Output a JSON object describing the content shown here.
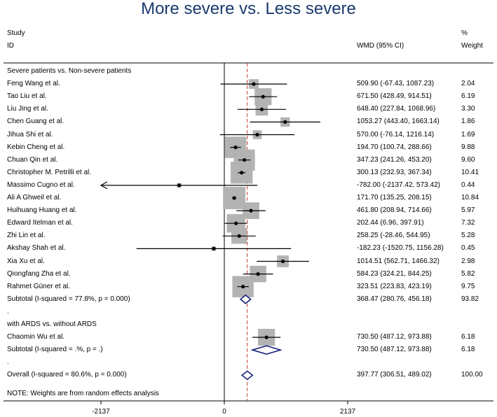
{
  "chart_data": {
    "type": "forest",
    "title": "More severe vs. Less severe",
    "header": {
      "study": "Study",
      "id": "ID",
      "effect": "WMD (95% CI)",
      "pct": "%",
      "weight": "Weight"
    },
    "x_ticks": [
      -2137,
      0,
      2137
    ],
    "x_tick_labels": [
      "-2137",
      "0",
      "2137"
    ],
    "xlim": [
      -2137,
      2137
    ],
    "overall_line": 397.77,
    "rows": [
      {
        "kind": "group",
        "label": "Severe patients vs. Non-severe patients"
      },
      {
        "kind": "study",
        "label": "Feng Wang et al.",
        "est": 509.9,
        "lo": -67.43,
        "hi": 1087.23,
        "ci": "509.90 (-67.43, 1087.23)",
        "weight": "2.04",
        "w": 2.04
      },
      {
        "kind": "study",
        "label": "Tao Liu et al.",
        "est": 671.5,
        "lo": 428.49,
        "hi": 914.51,
        "ci": "671.50 (428.49, 914.51)",
        "weight": "6.19",
        "w": 6.19
      },
      {
        "kind": "study",
        "label": "Liu Jing et al.",
        "est": 648.4,
        "lo": 227.84,
        "hi": 1068.96,
        "ci": "648.40 (227.84, 1068.96)",
        "weight": "3.30",
        "w": 3.3
      },
      {
        "kind": "study",
        "label": "Chen Guang et al.",
        "est": 1053.27,
        "lo": 443.4,
        "hi": 1663.14,
        "ci": "1053.27 (443.40, 1663.14)",
        "weight": "1.86",
        "w": 1.86
      },
      {
        "kind": "study",
        "label": "Jihua Shi et al.",
        "est": 570.0,
        "lo": -76.14,
        "hi": 1216.14,
        "ci": "570.00 (-76.14, 1216.14)",
        "weight": "1.69",
        "w": 1.69
      },
      {
        "kind": "study",
        "label": "Kebin Cheng et al.",
        "est": 194.7,
        "lo": 100.74,
        "hi": 288.66,
        "ci": "194.70 (100.74, 288.66)",
        "weight": "9.88",
        "w": 9.88
      },
      {
        "kind": "study",
        "label": "Chuan Qin et al.",
        "est": 347.23,
        "lo": 241.26,
        "hi": 453.2,
        "ci": "347.23 (241.26, 453.20)",
        "weight": "9.60",
        "w": 9.6
      },
      {
        "kind": "study",
        "label": "Christopher M. Petrilli et al.",
        "est": 300.13,
        "lo": 232.93,
        "hi": 367.34,
        "ci": "300.13 (232.93, 367.34)",
        "weight": "10.41",
        "w": 10.41
      },
      {
        "kind": "study",
        "label": "Massimo Cugno et al.",
        "est": -782.0,
        "lo": -2137.42,
        "hi": 573.42,
        "ci": "-782.00 (-2137.42, 573.42)",
        "weight": "0.44",
        "w": 0.44,
        "arrow_left": true
      },
      {
        "kind": "study",
        "label": "Ali A Ghweil et al.",
        "est": 171.7,
        "lo": 135.25,
        "hi": 208.15,
        "ci": "171.70 (135.25, 208.15)",
        "weight": "10.84",
        "w": 10.84
      },
      {
        "kind": "study",
        "label": "Huihuang Huang et al.",
        "est": 461.8,
        "lo": 208.94,
        "hi": 714.66,
        "ci": "461.80 (208.94, 714.66)",
        "weight": "5.97",
        "w": 5.97
      },
      {
        "kind": "study",
        "label": "Edward Itelman et al.",
        "est": 202.44,
        "lo": 6.96,
        "hi": 397.91,
        "ci": "202.44 (6.96, 397.91)",
        "weight": "7.32",
        "w": 7.32
      },
      {
        "kind": "study",
        "label": "Zhi Lin et al.",
        "est": 258.25,
        "lo": -28.46,
        "hi": 544.95,
        "ci": "258.25 (-28.46, 544.95)",
        "weight": "5.28",
        "w": 5.28
      },
      {
        "kind": "study",
        "label": "Akshay Shah et al.",
        "est": -182.23,
        "lo": -1520.75,
        "hi": 1156.28,
        "ci": "-182.23 (-1520.75, 1156.28)",
        "weight": "0.45",
        "w": 0.45
      },
      {
        "kind": "study",
        "label": "Xia Xu et al.",
        "est": 1014.51,
        "lo": 562.71,
        "hi": 1466.32,
        "ci": "1014.51 (562.71, 1466.32)",
        "weight": "2.98",
        "w": 2.98
      },
      {
        "kind": "study",
        "label": "Qiongfang Zha et al.",
        "est": 584.23,
        "lo": 324.21,
        "hi": 844.25,
        "ci": "584.23 (324.21, 844.25)",
        "weight": "5.82",
        "w": 5.82
      },
      {
        "kind": "study",
        "label": "Rahmet Güner et al.",
        "est": 323.51,
        "lo": 223.83,
        "hi": 423.19,
        "ci": "323.51 (223.83, 423.19)",
        "weight": "9.75",
        "w": 9.75
      },
      {
        "kind": "subtotal",
        "label": "Subtotal  (I-squared = 77.8%, p = 0.000)",
        "est": 368.47,
        "lo": 280.76,
        "hi": 456.18,
        "ci": "368.47 (280.76, 456.18)",
        "weight": "93.82"
      },
      {
        "kind": "dot",
        "label": "."
      },
      {
        "kind": "group",
        "label": "with ARDS vs. without ARDS"
      },
      {
        "kind": "study",
        "label": "Chaomin Wu et al.",
        "est": 730.5,
        "lo": 487.12,
        "hi": 973.88,
        "ci": "730.50 (487.12, 973.88)",
        "weight": "6.18",
        "w": 6.18
      },
      {
        "kind": "subtotal",
        "label": "Subtotal  (I-squared = .%, p = .)",
        "est": 730.5,
        "lo": 487.12,
        "hi": 973.88,
        "ci": "730.50 (487.12, 973.88)",
        "weight": "6.18"
      },
      {
        "kind": "dot",
        "label": "."
      },
      {
        "kind": "subtotal",
        "label": "Overall  (I-squared = 80.6%, p = 0.000)",
        "est": 397.77,
        "lo": 306.51,
        "hi": 489.02,
        "ci": "397.77 (306.51, 489.02)",
        "weight": "100.00"
      }
    ],
    "note": "NOTE: Weights are from random effects analysis",
    "colors": {
      "title": "#1a3a6e",
      "box": "#b3b3b3",
      "diamond": "#1a237e",
      "reference_line": "#c0392b"
    }
  }
}
